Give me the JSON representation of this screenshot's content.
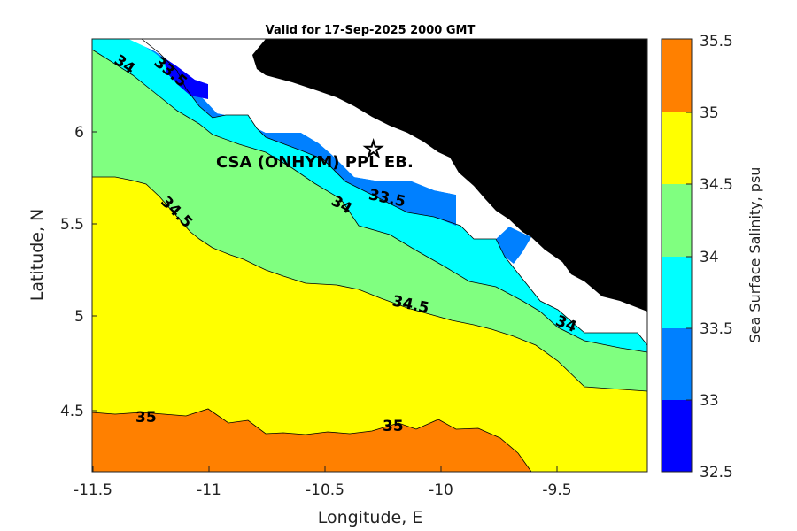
{
  "title": "Valid for 17-Sep-2025 2000 GMT",
  "xlabel": "Longitude, E",
  "ylabel": "Latitude, N",
  "xticks": [
    "-11.5",
    "-11",
    "-10.5",
    "-10",
    "-9.5"
  ],
  "yticks": [
    "4.5",
    "5",
    "5.5",
    "6"
  ],
  "colorbar": {
    "label": "Sea Surface Salinity, psu",
    "ticks": [
      "32.5",
      "33",
      "33.5",
      "34",
      "34.5",
      "35",
      "35.5"
    ],
    "levels": [
      {
        "range": "32.5-33",
        "color": "#0000ff"
      },
      {
        "range": "33-33.5",
        "color": "#0080ff"
      },
      {
        "range": "33.5-34",
        "color": "#00ffff"
      },
      {
        "range": "34-34.5",
        "color": "#80ff80"
      },
      {
        "range": "34.5-35",
        "color": "#ffff00"
      },
      {
        "range": "35-35.5",
        "color": "#ff8000"
      }
    ]
  },
  "land_color": "#000000",
  "site_label": "CSA (ONHYM) PPL EB.",
  "site_marker": "star-icon",
  "contour_labels": [
    "34",
    "33.5",
    "34.5",
    "34",
    "33.5",
    "34.5",
    "34",
    "35",
    "35"
  ],
  "chart_data": {
    "type": "heatmap",
    "title": "Valid for 17-Sep-2025 2000 GMT",
    "xlabel": "Longitude, E",
    "ylabel": "Latitude, N",
    "xlim": [
      -11.52,
      -9.13
    ],
    "ylim": [
      4.15,
      6.5
    ],
    "variable": "Sea Surface Salinity, psu",
    "color_levels": [
      32.5,
      33,
      33.5,
      34,
      34.5,
      35,
      35.5
    ],
    "contour_levels_labeled": [
      33.5,
      34,
      34.5,
      35
    ]
  }
}
